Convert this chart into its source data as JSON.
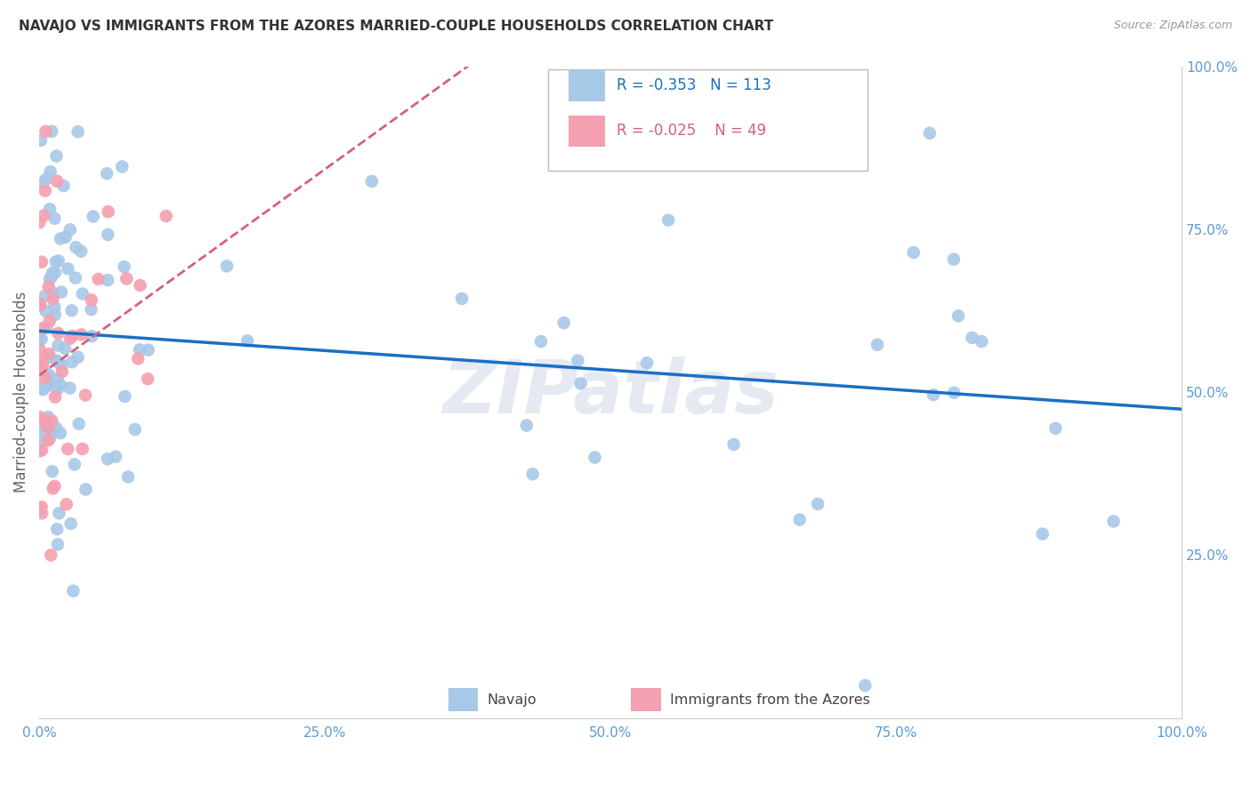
{
  "title": "NAVAJO VS IMMIGRANTS FROM THE AZORES MARRIED-COUPLE HOUSEHOLDS CORRELATION CHART",
  "source": "Source: ZipAtlas.com",
  "ylabel_label": "Married-couple Households",
  "navajo_R": -0.353,
  "navajo_N": 113,
  "azores_R": -0.025,
  "azores_N": 49,
  "navajo_color": "#a8c8e8",
  "azores_color": "#f4a0b0",
  "navajo_line_color": "#1a6fc4",
  "azores_line_color": "#d46080",
  "watermark": "ZIPatlas",
  "legend_R1": "R = -0.353",
  "legend_N1": "N = 113",
  "legend_R2": "R = -0.025",
  "legend_N2": "N = 49",
  "legend_label1": "Navajo",
  "legend_label2": "Immigrants from the Azores",
  "x_tick_labels": [
    "0.0%",
    "25.0%",
    "50.0%",
    "75.0%",
    "100.0%"
  ],
  "y_tick_labels": [
    "25.0%",
    "50.0%",
    "75.0%",
    "100.0%"
  ],
  "title_fontsize": 11,
  "source_fontsize": 9,
  "tick_fontsize": 11,
  "tick_color": "#5b9bd5",
  "background_color": "#ffffff",
  "grid_color": "#cccccc",
  "grid_linestyle": "--",
  "grid_linewidth": 0.8
}
